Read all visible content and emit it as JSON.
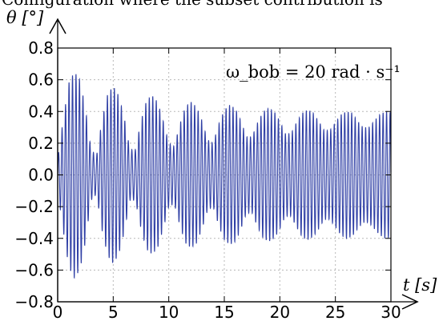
{
  "caption_fragment": "Configuration where the subset contribution is",
  "chart_data": {
    "type": "line",
    "title": "",
    "xlabel": "t [s]",
    "ylabel": "θ [°]",
    "xlim": [
      0,
      30
    ],
    "ylim": [
      -0.8,
      0.8
    ],
    "x_ticks": [
      "0",
      "5",
      "10",
      "15",
      "20",
      "25",
      "30"
    ],
    "y_ticks": [
      "0.8",
      "0.6",
      "0.4",
      "0.2",
      "0.0",
      "−0.2",
      "−0.4",
      "−0.6",
      "−0.8"
    ],
    "grid": true,
    "annotation": "ω_bob = 20 rad · s⁻¹",
    "series_color": "#2f3fa5",
    "series": [
      {
        "name": "",
        "envelope": {
          "t": [
            0,
            0.5,
            1.0,
            1.5,
            2.0,
            2.5,
            3.0,
            3.5,
            4.0,
            4.5,
            5.0,
            5.5,
            6.0,
            6.5,
            7.0,
            7.5,
            8.0,
            8.5,
            9.0,
            9.5,
            10.0,
            10.5,
            11.0,
            11.5,
            12.0,
            12.5,
            13.0,
            13.5,
            14.0,
            14.5,
            15.0,
            15.5,
            16.0,
            16.5,
            17.0,
            17.5,
            18.0,
            18.5,
            19.0,
            19.5,
            20.0,
            20.5,
            21.0,
            21.5,
            22.0,
            22.5,
            23.0,
            23.5,
            24.0,
            24.5,
            25.0,
            25.5,
            26.0,
            26.5,
            27.0,
            27.5,
            28.0,
            28.5,
            29.0,
            29.5,
            30.0
          ],
          "amplitude": [
            0.1,
            0.35,
            0.58,
            0.65,
            0.6,
            0.42,
            0.16,
            0.12,
            0.35,
            0.51,
            0.56,
            0.5,
            0.36,
            0.16,
            0.16,
            0.34,
            0.47,
            0.5,
            0.46,
            0.34,
            0.2,
            0.18,
            0.32,
            0.43,
            0.46,
            0.43,
            0.34,
            0.22,
            0.2,
            0.32,
            0.41,
            0.44,
            0.42,
            0.34,
            0.24,
            0.24,
            0.33,
            0.4,
            0.42,
            0.4,
            0.34,
            0.26,
            0.26,
            0.33,
            0.39,
            0.41,
            0.39,
            0.34,
            0.28,
            0.28,
            0.33,
            0.38,
            0.4,
            0.39,
            0.34,
            0.3,
            0.3,
            0.34,
            0.38,
            0.4,
            0.39
          ]
        },
        "carrier_angular_frequency": 20
      }
    ]
  }
}
